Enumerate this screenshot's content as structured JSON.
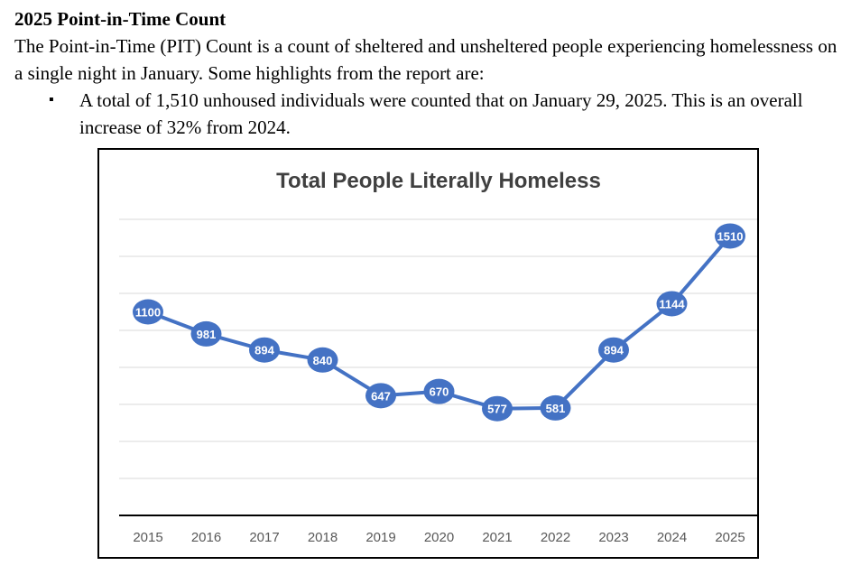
{
  "document": {
    "heading": "2025 Point-in-Time Count",
    "intro": "The Point-in-Time (PIT) Count is a count of sheltered and unsheltered people experiencing homelessness on a single night in January. Some highlights from the report are:",
    "bullets": [
      "A total of 1,510 unhoused individuals were counted that on January 29, 2025. This is an overall increase of 32% from 2024."
    ],
    "bullet_symbol": "▪"
  },
  "chart_data": {
    "type": "line",
    "title": "Total People Literally Homeless",
    "categories": [
      "2015",
      "2016",
      "2017",
      "2018",
      "2019",
      "2020",
      "2021",
      "2022",
      "2023",
      "2024",
      "2025"
    ],
    "values": [
      1100,
      981,
      894,
      840,
      647,
      670,
      577,
      581,
      894,
      1144,
      1510
    ],
    "data_labels": [
      "1100",
      "981",
      "894",
      "840",
      "647",
      "670",
      "577",
      "581",
      "894",
      "1144",
      "1510"
    ],
    "xlabel": "",
    "ylabel": "",
    "ylim": [
      0,
      1600
    ],
    "grid": true,
    "legend": false,
    "colors": {
      "line": "#4472c4",
      "marker": "#4472c4",
      "label_text": "#ffffff",
      "grid": "#d9d9d9",
      "title": "#404040",
      "axis_text": "#595959",
      "frame": "#000000"
    }
  }
}
